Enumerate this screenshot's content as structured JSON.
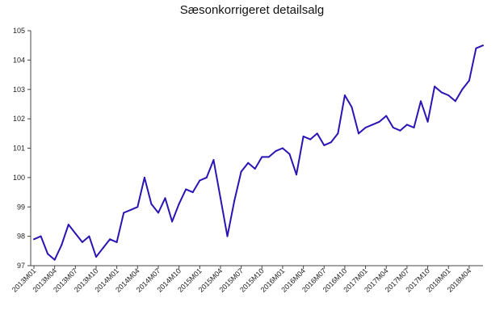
{
  "chart_data": {
    "type": "line",
    "title": "Sæsonkorrigeret detailsalg",
    "xlabel": "",
    "ylabel": "",
    "ylim": [
      97,
      105
    ],
    "yticks": [
      97,
      98,
      99,
      100,
      101,
      102,
      103,
      104,
      105
    ],
    "grid": false,
    "legend": "none",
    "line_color": "#2a14b4",
    "x": [
      "2013M01",
      "2013M02",
      "2013M03",
      "2013M04",
      "2013M05",
      "2013M06",
      "2013M07",
      "2013M08",
      "2013M09",
      "2013M10",
      "2013M11",
      "2013M12",
      "2014M01",
      "2014M02",
      "2014M03",
      "2014M04",
      "2014M05",
      "2014M06",
      "2014M07",
      "2014M08",
      "2014M09",
      "2014M10",
      "2014M11",
      "2014M12",
      "2015M01",
      "2015M02",
      "2015M03",
      "2015M04",
      "2015M05",
      "2015M06",
      "2015M07",
      "2015M08",
      "2015M09",
      "2015M10",
      "2015M11",
      "2015M12",
      "2016M01",
      "2016M02",
      "2016M03",
      "2016M04",
      "2016M05",
      "2016M06",
      "2016M07",
      "2016M08",
      "2016M09",
      "2016M10",
      "2016M11",
      "2016M12",
      "2017M01",
      "2017M02",
      "2017M03",
      "2017M04",
      "2017M05",
      "2017M06",
      "2017M07",
      "2017M08",
      "2017M09",
      "2017M10",
      "2017M11",
      "2017M12",
      "2018M01",
      "2018M02",
      "2018M03",
      "2018M04",
      "2018M05",
      "2018M06"
    ],
    "xtick_labels": [
      "2013M01",
      "2013M04",
      "2013M07",
      "2013M10",
      "2014M01",
      "2014M04",
      "2014M07",
      "2014M10",
      "2015M01",
      "2015M04",
      "2015M07",
      "2015M10",
      "2016M01",
      "2016M04",
      "2016M07",
      "2016M10",
      "2017M01",
      "2017M04",
      "2017M07",
      "2017M10",
      "2018M01",
      "2018M04"
    ],
    "series": [
      {
        "values": [
          97.9,
          98.0,
          97.4,
          97.2,
          97.7,
          98.4,
          98.1,
          97.8,
          98.0,
          97.3,
          97.6,
          97.9,
          97.8,
          98.8,
          98.9,
          99.0,
          100.0,
          99.1,
          98.8,
          99.3,
          98.5,
          99.1,
          99.6,
          99.5,
          99.9,
          100.0,
          100.6,
          99.3,
          98.0,
          99.2,
          100.2,
          100.5,
          100.3,
          100.7,
          100.7,
          100.9,
          101.0,
          100.8,
          100.1,
          101.4,
          101.3,
          101.5,
          101.1,
          101.2,
          101.5,
          102.8,
          102.4,
          101.5,
          101.7,
          101.8,
          101.9,
          102.1,
          101.7,
          101.6,
          101.8,
          101.7,
          102.6,
          101.9,
          103.1,
          102.9,
          102.8,
          102.6,
          103.0,
          103.3,
          104.4,
          104.5
        ]
      }
    ]
  }
}
